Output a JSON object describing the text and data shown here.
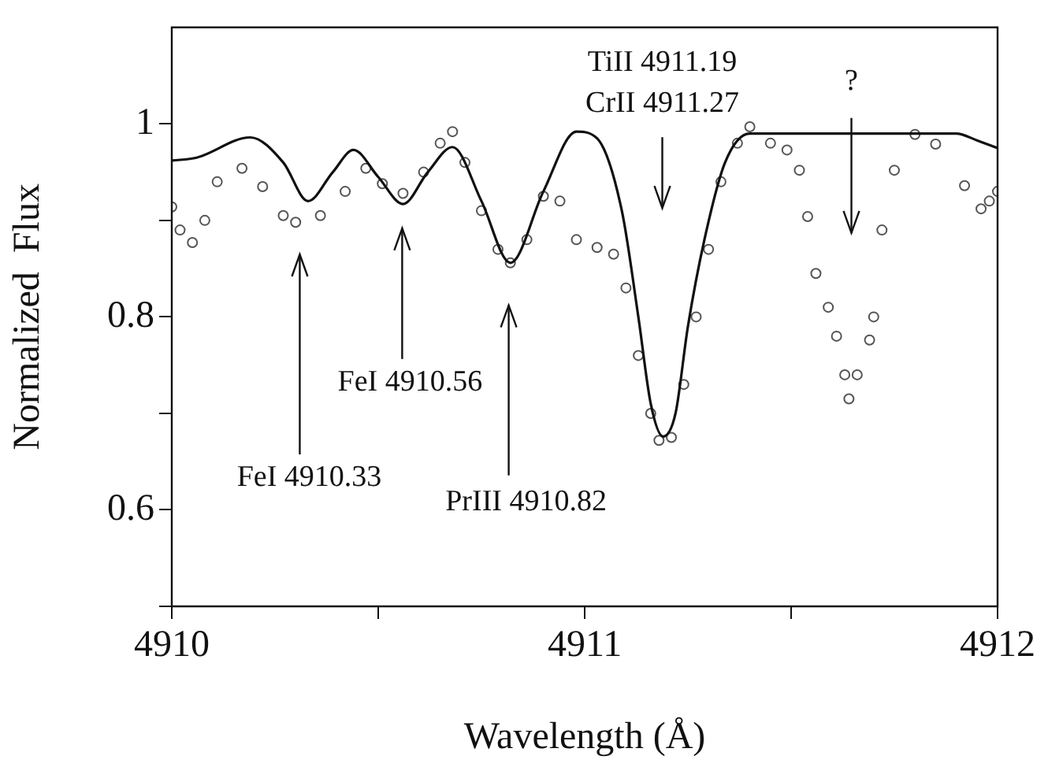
{
  "chart_data": {
    "type": "line",
    "xlabel": "Wavelength (Å)",
    "ylabel": "Normalized  Flux",
    "xlim": [
      4910,
      4912
    ],
    "xticks": [
      4910,
      {
        "value": 4910.5,
        "label": null
      },
      4911,
      {
        "value": 4911.5,
        "label": null
      },
      4912
    ],
    "ylim": [
      0.5,
      1.1
    ],
    "yticks": [
      {
        "value": 0.5,
        "label": null
      },
      0.6,
      {
        "value": 0.7,
        "label": null
      },
      0.8,
      {
        "value": 0.9,
        "label": null
      },
      1
    ],
    "series": [
      {
        "type": "line",
        "color": "#111111",
        "marker": "none",
        "line_style": "solid",
        "x": [
          4910.0,
          4910.06,
          4910.19,
          4910.27,
          4910.33,
          4910.39,
          4910.44,
          4910.5,
          4910.56,
          4910.62,
          4910.68,
          4910.75,
          4910.82,
          4910.9,
          4910.98,
          4911.03,
          4911.09,
          4911.13,
          4911.16,
          4911.19,
          4911.22,
          4911.25,
          4911.29,
          4911.34,
          4911.4,
          4911.49,
          4911.9,
          4911.95,
          4912.0
        ],
        "values": [
          0.962,
          0.965,
          0.986,
          0.96,
          0.92,
          0.95,
          0.973,
          0.945,
          0.917,
          0.95,
          0.976,
          0.92,
          0.856,
          0.93,
          0.992,
          0.985,
          0.91,
          0.8,
          0.71,
          0.676,
          0.7,
          0.79,
          0.88,
          0.96,
          0.99,
          0.99,
          0.99,
          0.983,
          0.975
        ]
      },
      {
        "type": "scatter",
        "color": "#555555",
        "marker": "circle",
        "x": [
          4910.0,
          4910.02,
          4910.05,
          4910.08,
          4910.11,
          4910.17,
          4910.22,
          4910.27,
          4910.3,
          4910.36,
          4910.42,
          4910.47,
          4910.51,
          4910.56,
          4910.61,
          4910.65,
          4910.68,
          4910.71,
          4910.75,
          4910.79,
          4910.82,
          4910.86,
          4910.9,
          4910.94,
          4910.98,
          4911.03,
          4911.07,
          4911.1,
          4911.13,
          4911.16,
          4911.18,
          4911.21,
          4911.24,
          4911.27,
          4911.3,
          4911.33,
          4911.37,
          4911.4,
          4911.45,
          4911.49,
          4911.52,
          4911.54,
          4911.56,
          4911.59,
          4911.61,
          4911.63,
          4911.64,
          4911.66,
          4911.69,
          4911.7,
          4911.72,
          4911.75,
          4911.8,
          4911.85,
          4911.92,
          4911.96,
          4911.98,
          4912.0
        ],
        "values": [
          0.914,
          0.89,
          0.877,
          0.9,
          0.94,
          0.954,
          0.935,
          0.905,
          0.898,
          0.905,
          0.93,
          0.954,
          0.938,
          0.928,
          0.95,
          0.98,
          0.992,
          0.96,
          0.91,
          0.87,
          0.856,
          0.88,
          0.925,
          0.92,
          0.88,
          0.872,
          0.865,
          0.83,
          0.76,
          0.7,
          0.672,
          0.675,
          0.73,
          0.8,
          0.87,
          0.94,
          0.98,
          0.997,
          0.98,
          0.973,
          0.952,
          0.904,
          0.845,
          0.81,
          0.78,
          0.74,
          0.715,
          0.74,
          0.776,
          0.8,
          0.89,
          0.952,
          0.989,
          0.979,
          0.936,
          0.912,
          0.92,
          0.93
        ]
      }
    ],
    "annotations": [
      "FeI 4910.33",
      "FeI 4910.56",
      "PrIII 4910.82",
      "TiII 4911.19\nCrII 4911.27",
      "?"
    ]
  }
}
